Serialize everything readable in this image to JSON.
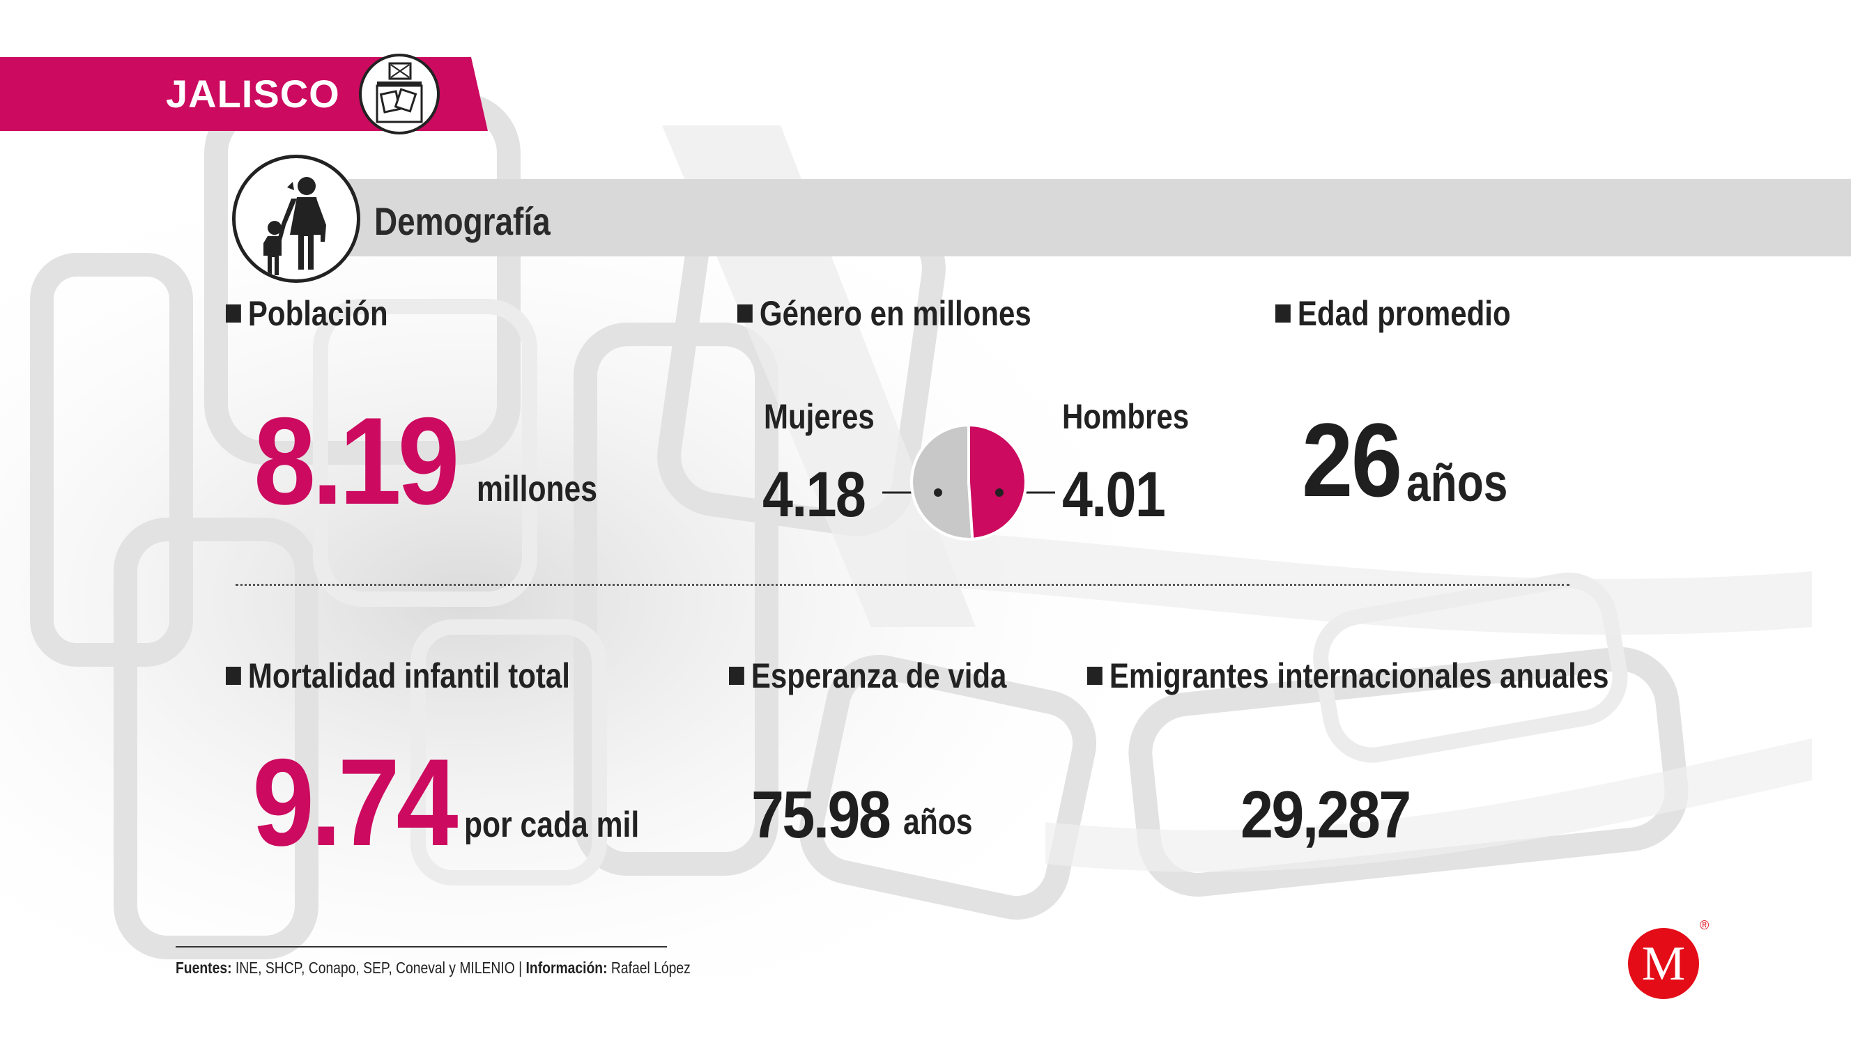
{
  "header": {
    "state": "JALISCO"
  },
  "section": {
    "title": "Demografía"
  },
  "poblacion": {
    "label": "Población",
    "value": "8.19",
    "unit": "millones"
  },
  "genero": {
    "label": "Género en millones",
    "mujeres": {
      "label": "Mujeres",
      "value": "4.18"
    },
    "hombres": {
      "label": "Hombres",
      "value": "4.01"
    },
    "chart_data": {
      "type": "pie",
      "categories": [
        "Mujeres",
        "Hombres"
      ],
      "values": [
        4.18,
        4.01
      ],
      "colors": [
        "#c8c8c8",
        "#cc0a5f"
      ]
    }
  },
  "edad": {
    "label": "Edad promedio",
    "value": "26",
    "unit": "años"
  },
  "mortalidad": {
    "label": "Mortalidad infantil total",
    "value": "9.74",
    "unit": "por cada mil"
  },
  "esperanza": {
    "label": "Esperanza de vida",
    "value": "75.98",
    "unit": "años"
  },
  "emigrantes": {
    "label": "Emigrantes internacionales anuales",
    "value": "29,287"
  },
  "footer": {
    "fuentes_label": "Fuentes:",
    "fuentes_text": "INE, SHCP, Conapo, SEP, Coneval y MILENIO",
    "separator": "|",
    "info_label": "Información:",
    "info_text": "Rafael López"
  },
  "logo": {
    "letter": "M",
    "mark": "®"
  },
  "colors": {
    "accent": "#cc0a5f",
    "gray": "#d9d9d9",
    "dark": "#1f1f1f",
    "logo": "#e30c17"
  }
}
